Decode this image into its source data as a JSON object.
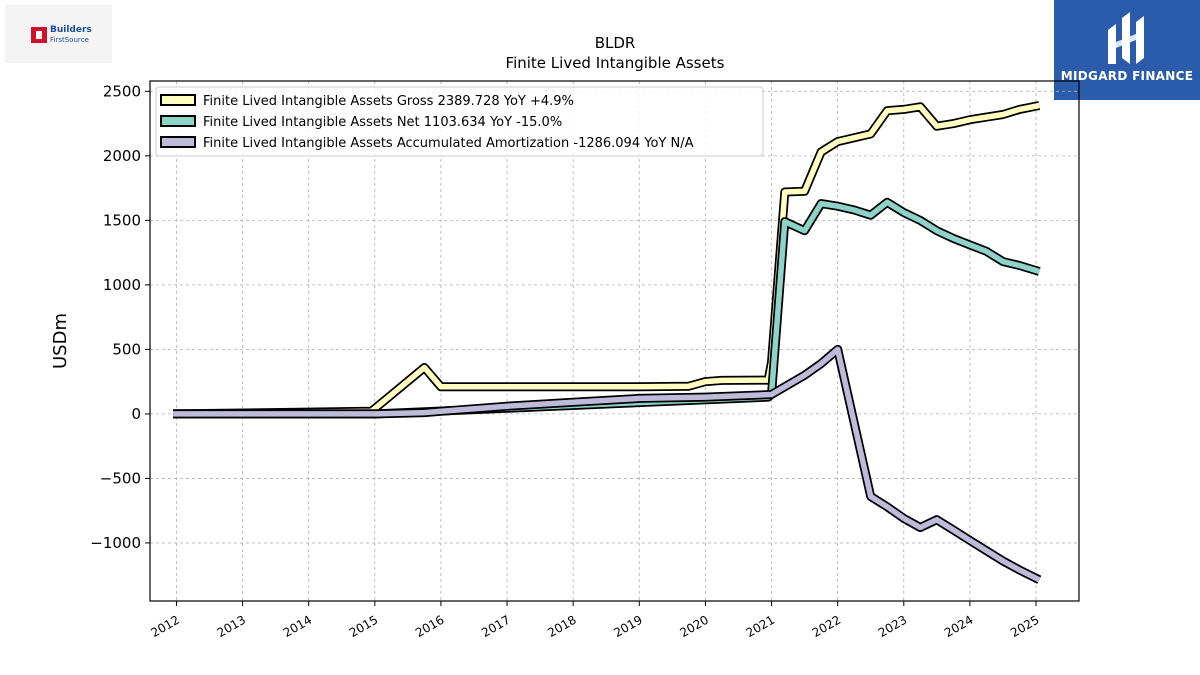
{
  "logos": {
    "left_line1": "Builders",
    "left_line2": "FirstSource",
    "right_name": "MIDGARD FINANCE"
  },
  "colors": {
    "gross": "#ffffbf",
    "net": "#8dd3c7",
    "amort": "#bebada",
    "outline": "#000000"
  },
  "chart_data": {
    "type": "line",
    "title": "BLDR",
    "subtitle": "Finite Lived Intangible Assets",
    "ylabel": "USDm",
    "xlabel": "",
    "xlim": [
      2011.6,
      2025.65
    ],
    "ylim": [
      -1450,
      2580
    ],
    "x_ticks": [
      2012,
      2013,
      2014,
      2015,
      2016,
      2017,
      2018,
      2019,
      2020,
      2021,
      2022,
      2023,
      2024,
      2025
    ],
    "y_ticks": [
      -1000,
      -500,
      0,
      500,
      1000,
      1500,
      2000,
      2500
    ],
    "grid": true,
    "legend_position": "top-left",
    "series": [
      {
        "name": "Finite Lived Intangible Assets Gross  2389.728 YoY +4.9%",
        "key": "gross",
        "points": [
          [
            2011.95,
            0
          ],
          [
            2014.95,
            20
          ],
          [
            2015.75,
            360
          ],
          [
            2016.0,
            210
          ],
          [
            2019.0,
            210
          ],
          [
            2019.75,
            215
          ],
          [
            2020.0,
            250
          ],
          [
            2020.25,
            260
          ],
          [
            2020.95,
            262
          ],
          [
            2021.0,
            400
          ],
          [
            2021.2,
            1720
          ],
          [
            2021.5,
            1725
          ],
          [
            2021.75,
            2030
          ],
          [
            2022.0,
            2110
          ],
          [
            2022.5,
            2170
          ],
          [
            2022.75,
            2350
          ],
          [
            2023.0,
            2360
          ],
          [
            2023.25,
            2380
          ],
          [
            2023.5,
            2230
          ],
          [
            2023.75,
            2250
          ],
          [
            2024.0,
            2280
          ],
          [
            2024.25,
            2300
          ],
          [
            2024.5,
            2320
          ],
          [
            2024.75,
            2360
          ],
          [
            2025.05,
            2390
          ]
        ]
      },
      {
        "name": "Finite Lived Intangible Assets Net  1103.634 YoY -15.0%",
        "key": "net",
        "points": [
          [
            2011.95,
            0
          ],
          [
            2015.0,
            0
          ],
          [
            2020.95,
            130
          ],
          [
            2021.0,
            150
          ],
          [
            2021.2,
            1490
          ],
          [
            2021.5,
            1420
          ],
          [
            2021.75,
            1630
          ],
          [
            2022.0,
            1610
          ],
          [
            2022.25,
            1580
          ],
          [
            2022.5,
            1540
          ],
          [
            2022.75,
            1640
          ],
          [
            2023.0,
            1560
          ],
          [
            2023.25,
            1500
          ],
          [
            2023.5,
            1420
          ],
          [
            2023.75,
            1360
          ],
          [
            2024.0,
            1310
          ],
          [
            2024.25,
            1260
          ],
          [
            2024.5,
            1180
          ],
          [
            2024.75,
            1150
          ],
          [
            2025.05,
            1104
          ]
        ]
      },
      {
        "name": "Finite Lived Intangible Assets Accumulated Amortization  -1286.094 YoY N/A",
        "key": "amort",
        "points": [
          [
            2011.95,
            0
          ],
          [
            2015.0,
            0
          ],
          [
            2015.75,
            10
          ],
          [
            2016.0,
            20
          ],
          [
            2017.0,
            60
          ],
          [
            2018.0,
            90
          ],
          [
            2019.0,
            120
          ],
          [
            2020.0,
            130
          ],
          [
            2021.0,
            150
          ],
          [
            2021.5,
            300
          ],
          [
            2021.75,
            390
          ],
          [
            2022.0,
            500
          ],
          [
            2022.5,
            -640
          ],
          [
            2022.75,
            -720
          ],
          [
            2023.0,
            -810
          ],
          [
            2023.25,
            -880
          ],
          [
            2023.5,
            -820
          ],
          [
            2023.75,
            -900
          ],
          [
            2024.0,
            -980
          ],
          [
            2024.5,
            -1140
          ],
          [
            2024.75,
            -1210
          ],
          [
            2025.05,
            -1286
          ]
        ]
      }
    ]
  }
}
